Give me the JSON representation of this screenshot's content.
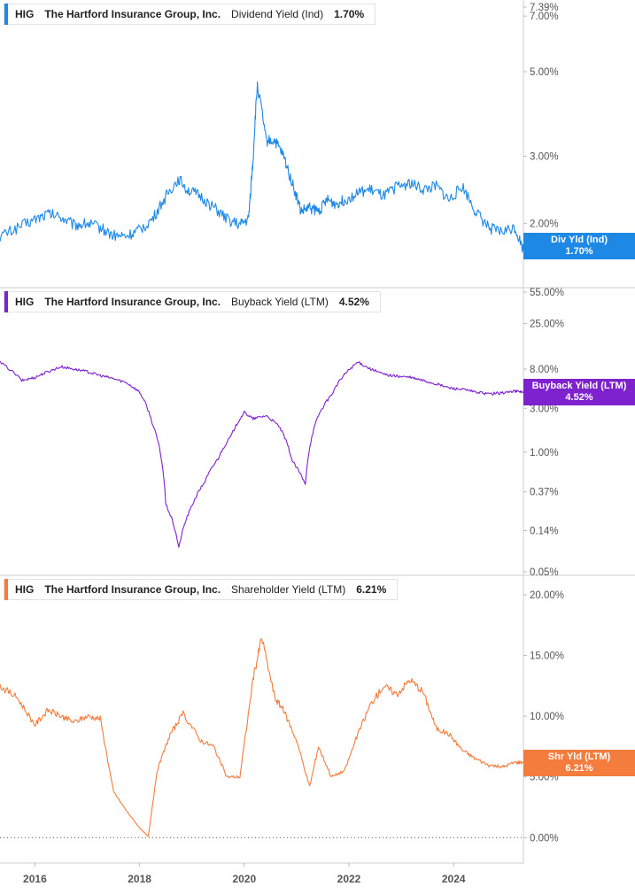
{
  "chart_data": {
    "type": "line",
    "x_ticks": [
      "2016",
      "2018",
      "2020",
      "2022",
      "2024"
    ],
    "x_range": [
      "2015-05",
      "2025-05"
    ],
    "panels": [
      {
        "id": "div",
        "ticker": "HIG",
        "company": "The Hartford Insurance Group, Inc.",
        "metric": "Dividend Yield (Ind)",
        "current_value": "1.70%",
        "badge_label": "Div Yld (Ind)",
        "badge_value": "1.70%",
        "color": "#1e88e5",
        "scale": "log",
        "ylim": [
          1.55,
          7.39
        ],
        "y_ticks": [
          {
            "v": 7.39,
            "label": "7.39%"
          },
          {
            "v": 7.0,
            "label": "7.00%"
          },
          {
            "v": 5.0,
            "label": "5.00%"
          },
          {
            "v": 3.0,
            "label": "3.00%"
          },
          {
            "v": 2.0,
            "label": "2.00%"
          }
        ],
        "series": {
          "x": [
            "2015-05",
            "2015-09",
            "2016-01",
            "2016-04",
            "2016-07",
            "2016-10",
            "2017-01",
            "2017-04",
            "2017-07",
            "2017-10",
            "2018-01",
            "2018-04",
            "2018-07",
            "2018-10",
            "2018-12",
            "2019-03",
            "2019-06",
            "2019-09",
            "2019-12",
            "2020-02",
            "2020-03",
            "2020-04",
            "2020-06",
            "2020-08",
            "2020-10",
            "2020-12",
            "2021-02",
            "2021-04",
            "2021-06",
            "2021-08",
            "2021-10",
            "2021-12",
            "2022-03",
            "2022-06",
            "2022-09",
            "2022-12",
            "2023-03",
            "2023-06",
            "2023-09",
            "2023-12",
            "2024-03",
            "2024-06",
            "2024-09",
            "2024-12",
            "2025-03",
            "2025-05"
          ],
          "y": [
            1.85,
            1.95,
            2.05,
            2.12,
            2.08,
            1.98,
            2.0,
            1.95,
            1.86,
            1.85,
            1.92,
            2.05,
            2.35,
            2.62,
            2.45,
            2.35,
            2.2,
            2.05,
            1.98,
            2.05,
            2.9,
            4.6,
            3.3,
            3.3,
            3.0,
            2.55,
            2.15,
            2.2,
            2.15,
            2.3,
            2.25,
            2.3,
            2.4,
            2.45,
            2.35,
            2.5,
            2.55,
            2.45,
            2.5,
            2.3,
            2.5,
            2.15,
            1.95,
            1.9,
            1.95,
            1.7
          ]
        }
      },
      {
        "id": "buyback",
        "ticker": "HIG",
        "company": "The Hartford Insurance Group, Inc.",
        "metric": "Buyback Yield (LTM)",
        "current_value": "4.52%",
        "badge_label": "Buyback Yield (LTM)",
        "badge_value": "4.52%",
        "color": "#7e22ce",
        "scale": "log",
        "ylim": [
          0.05,
          55
        ],
        "y_ticks": [
          {
            "v": 55,
            "label": "55.00%"
          },
          {
            "v": 25,
            "label": "25.00%"
          },
          {
            "v": 8,
            "label": "8.00%"
          },
          {
            "v": 3,
            "label": "3.00%"
          },
          {
            "v": 1,
            "label": "1.00%"
          },
          {
            "v": 0.37,
            "label": "0.37%"
          },
          {
            "v": 0.14,
            "label": "0.14%"
          },
          {
            "v": 0.05,
            "label": "0.05%"
          }
        ],
        "series": {
          "x": [
            "2015-05",
            "2015-10",
            "2016-01",
            "2016-04",
            "2016-07",
            "2016-10",
            "2017-01",
            "2017-04",
            "2017-07",
            "2017-10",
            "2018-01",
            "2018-04",
            "2018-07",
            "2018-10",
            "2019-01",
            "2019-04",
            "2019-07",
            "2019-10",
            "2020-01",
            "2020-03",
            "2020-06",
            "2020-09",
            "2020-12",
            "2021-03",
            "2021-06",
            "2021-09",
            "2021-12",
            "2022-03",
            "2022-06",
            "2022-09",
            "2022-12",
            "2023-03",
            "2023-06",
            "2023-09",
            "2023-12",
            "2024-03",
            "2024-06",
            "2024-09",
            "2024-12",
            "2025-03",
            "2025-05"
          ],
          "y": [
            9.5,
            6.0,
            6.5,
            7.5,
            8.5,
            8.0,
            7.5,
            6.8,
            6.3,
            5.7,
            4.5,
            2.0,
            0.27,
            0.09,
            0.26,
            0.48,
            0.85,
            1.5,
            2.7,
            2.3,
            2.5,
            1.9,
            0.8,
            0.44,
            2.5,
            4.2,
            7.0,
            9.5,
            8.0,
            7.0,
            6.7,
            6.5,
            6.0,
            5.5,
            5.0,
            4.8,
            4.5,
            4.3,
            4.4,
            4.6,
            4.52
          ]
        }
      },
      {
        "id": "shr",
        "ticker": "HIG",
        "company": "The Hartford Insurance Group, Inc.",
        "metric": "Shareholder Yield (LTM)",
        "current_value": "6.21%",
        "badge_label": "Shr Yld (LTM)",
        "badge_value": "6.21%",
        "color": "#f47c3c",
        "scale": "linear",
        "ylim": [
          -1.0,
          20.0
        ],
        "zero_line": true,
        "y_ticks": [
          {
            "v": 20,
            "label": "20.00%"
          },
          {
            "v": 15,
            "label": "15.00%"
          },
          {
            "v": 10,
            "label": "10.00%"
          },
          {
            "v": 5,
            "label": "5.00%"
          },
          {
            "v": 0,
            "label": "0.00%"
          }
        ],
        "series": {
          "x": [
            "2015-05",
            "2015-09",
            "2016-01",
            "2016-04",
            "2016-07",
            "2016-10",
            "2017-01",
            "2017-04",
            "2017-07",
            "2017-10",
            "2018-01",
            "2018-03",
            "2018-05",
            "2018-08",
            "2018-11",
            "2019-03",
            "2019-06",
            "2019-09",
            "2019-12",
            "2020-03",
            "2020-05",
            "2020-08",
            "2020-10",
            "2021-01",
            "2021-04",
            "2021-06",
            "2021-09",
            "2021-12",
            "2022-03",
            "2022-06",
            "2022-09",
            "2022-12",
            "2023-03",
            "2023-06",
            "2023-09",
            "2023-12",
            "2024-03",
            "2024-06",
            "2024-09",
            "2024-12",
            "2025-03",
            "2025-05"
          ],
          "y": [
            12.5,
            11.5,
            9.3,
            10.5,
            10.0,
            9.5,
            10.0,
            9.8,
            3.8,
            2.2,
            0.8,
            0.1,
            5.5,
            8.5,
            10.2,
            8.0,
            7.5,
            5.0,
            5.0,
            13.0,
            16.5,
            11.5,
            10.5,
            8.0,
            4.2,
            7.5,
            5.0,
            5.5,
            8.5,
            11.0,
            12.5,
            11.8,
            13.0,
            12.0,
            9.0,
            8.5,
            7.2,
            6.5,
            6.0,
            5.8,
            6.2,
            6.21
          ]
        }
      }
    ]
  }
}
